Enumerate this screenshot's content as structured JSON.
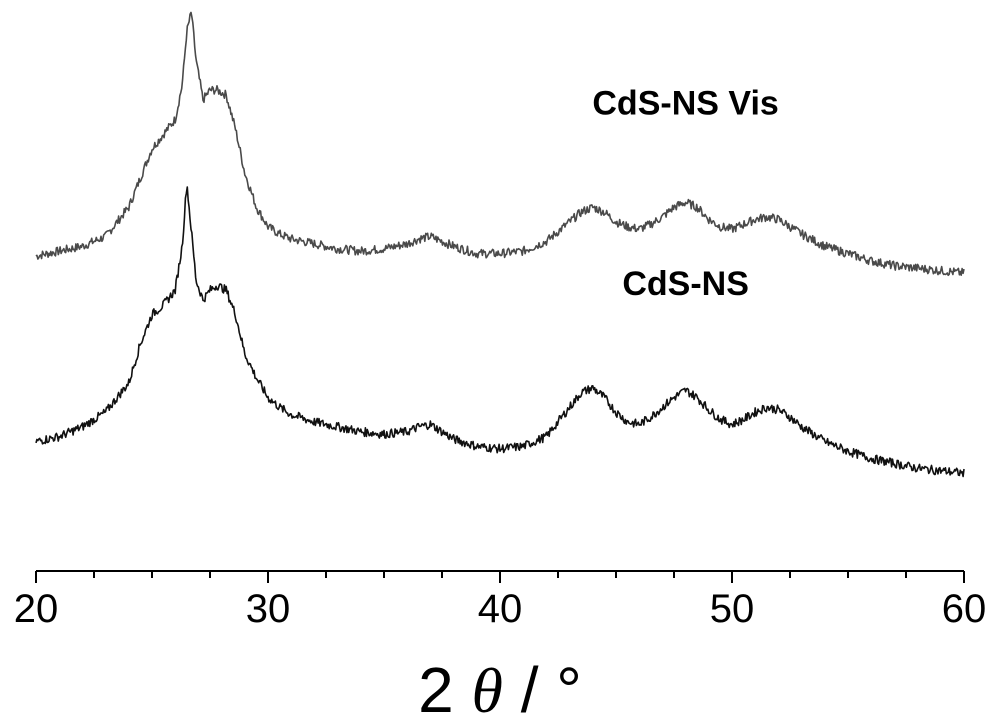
{
  "chart_data": {
    "type": "line",
    "title": "",
    "xlabel_prefix": "2 ",
    "xlabel_symbol": "θ",
    "xlabel_suffix": " / °",
    "ylabel": "",
    "xlim": [
      20,
      60
    ],
    "x_ticks": [
      20,
      30,
      40,
      50,
      60
    ],
    "x_tick_labels": [
      "20",
      "30",
      "40",
      "50",
      "60"
    ],
    "x_minor_step": 2.5,
    "y_axis_visible": false,
    "grid": false,
    "legend": "none",
    "series": [
      {
        "name": "CdS-NS Vis",
        "color": "#4a4a4a",
        "label_at": [
          48,
          0.79
        ],
        "x": [
          20,
          21,
          22,
          23,
          24,
          24.5,
          25,
          25.5,
          26,
          26.3,
          26.5,
          26.7,
          26.9,
          27.2,
          27.5,
          27.8,
          28.2,
          28.6,
          29,
          29.5,
          30,
          30.5,
          31,
          32,
          33,
          34,
          35,
          36,
          36.5,
          37,
          37.5,
          38,
          39,
          40,
          41,
          42,
          42.5,
          43,
          43.5,
          44,
          44.5,
          45,
          45.5,
          46,
          46.5,
          47,
          47.5,
          48,
          48.5,
          49,
          49.5,
          50,
          50.5,
          51,
          51.5,
          52,
          52.5,
          53,
          54,
          55,
          56,
          57,
          58,
          59,
          60
        ],
        "y": [
          0.5,
          0.51,
          0.52,
          0.54,
          0.6,
          0.66,
          0.72,
          0.75,
          0.78,
          0.85,
          0.96,
          1.0,
          0.9,
          0.82,
          0.84,
          0.84,
          0.83,
          0.76,
          0.67,
          0.6,
          0.56,
          0.545,
          0.535,
          0.525,
          0.515,
          0.51,
          0.515,
          0.525,
          0.535,
          0.54,
          0.53,
          0.52,
          0.505,
          0.505,
          0.51,
          0.53,
          0.55,
          0.57,
          0.59,
          0.6,
          0.59,
          0.57,
          0.56,
          0.555,
          0.565,
          0.58,
          0.6,
          0.61,
          0.6,
          0.575,
          0.56,
          0.555,
          0.565,
          0.575,
          0.58,
          0.575,
          0.56,
          0.545,
          0.52,
          0.505,
          0.49,
          0.48,
          0.475,
          0.47,
          0.465
        ]
      },
      {
        "name": "CdS-NS",
        "color": "#111111",
        "label_at": [
          48,
          0.42
        ],
        "x": [
          20,
          21,
          22,
          23,
          24,
          24.5,
          25,
          25.5,
          26,
          26.3,
          26.5,
          26.7,
          26.9,
          27.2,
          27.5,
          27.8,
          28.2,
          28.6,
          29,
          29.5,
          30,
          30.5,
          31,
          32,
          33,
          34,
          35,
          36,
          36.5,
          37,
          37.5,
          38,
          39,
          40,
          41,
          42,
          42.5,
          43,
          43.5,
          44,
          44.5,
          45,
          45.5,
          46,
          46.5,
          47,
          47.5,
          48,
          48.5,
          49,
          49.5,
          50,
          50.5,
          51,
          51.5,
          52,
          52.5,
          53,
          54,
          55,
          56,
          57,
          58,
          59,
          60
        ],
        "y": [
          0.12,
          0.13,
          0.15,
          0.18,
          0.24,
          0.32,
          0.38,
          0.4,
          0.43,
          0.52,
          0.65,
          0.55,
          0.45,
          0.41,
          0.43,
          0.44,
          0.43,
          0.38,
          0.3,
          0.25,
          0.21,
          0.19,
          0.175,
          0.16,
          0.15,
          0.14,
          0.135,
          0.14,
          0.15,
          0.155,
          0.14,
          0.125,
          0.11,
          0.105,
          0.11,
          0.13,
          0.16,
          0.19,
          0.22,
          0.23,
          0.21,
          0.18,
          0.16,
          0.155,
          0.17,
          0.19,
          0.21,
          0.225,
          0.21,
          0.185,
          0.165,
          0.155,
          0.165,
          0.18,
          0.19,
          0.185,
          0.17,
          0.15,
          0.12,
          0.1,
          0.085,
          0.075,
          0.065,
          0.06,
          0.055
        ]
      }
    ]
  }
}
